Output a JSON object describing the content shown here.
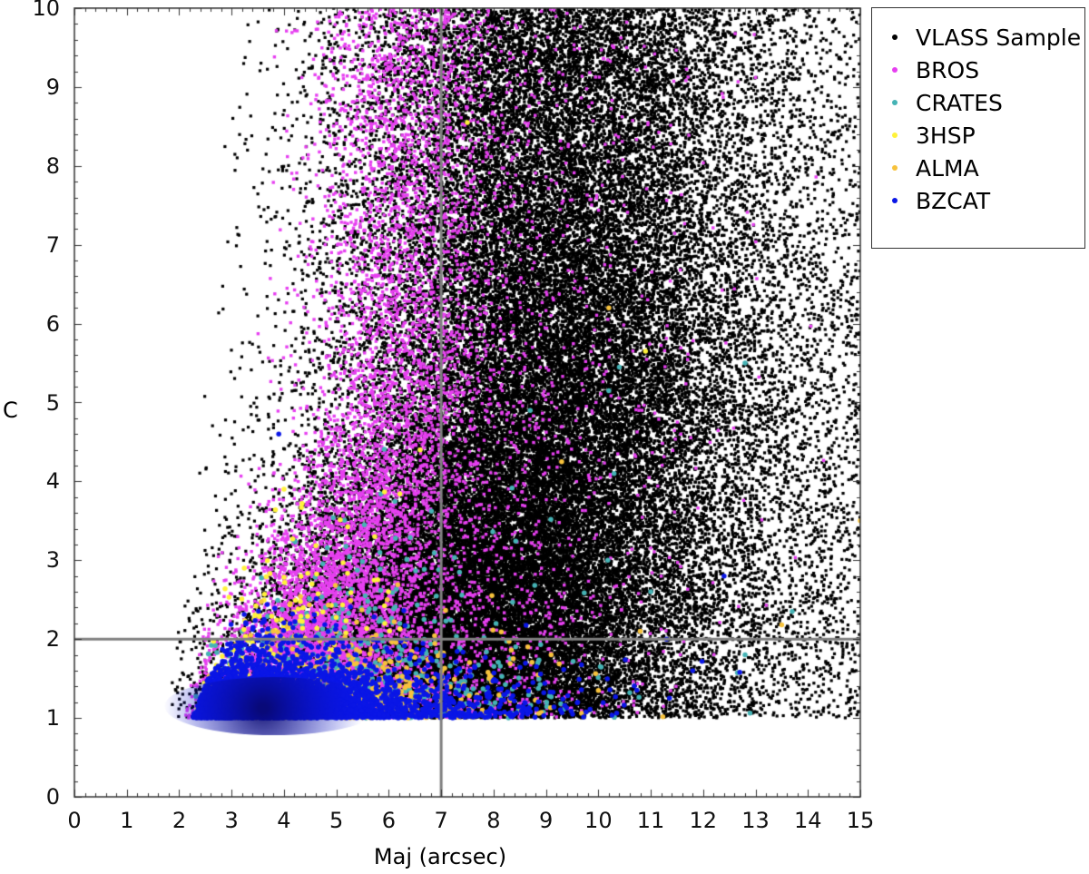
{
  "chart_data": {
    "type": "scatter",
    "title": "",
    "xlabel": "Maj (arcsec)",
    "ylabel": "C",
    "xlim": [
      0,
      15
    ],
    "ylim": [
      0,
      10
    ],
    "xticks": [
      "0",
      "1",
      "2",
      "3",
      "4",
      "5",
      "6",
      "7",
      "8",
      "9",
      "10",
      "11",
      "12",
      "13",
      "14",
      "15"
    ],
    "yticks": [
      "0",
      "1",
      "2",
      "3",
      "4",
      "5",
      "6",
      "7",
      "8",
      "9",
      "10"
    ],
    "x_minor_step": 0.2,
    "y_minor_step": 0.2,
    "grid": false,
    "legend_position": "outside upper right",
    "reference_lines": [
      {
        "orientation": "vertical",
        "x": 7,
        "color": "#808080"
      },
      {
        "orientation": "horizontal",
        "y": 2,
        "color": "#808080"
      }
    ],
    "series": [
      {
        "name": "VLASS Sample",
        "color": "#000000",
        "marker": "square",
        "size": 3.2,
        "description": "Very dense cloud; lower bound C=1; left edge from Maj~1.8 at C=1 to ~3.8 at C=10; densest around Maj 5-9; sparse tail to Maj 15",
        "generator": {
          "count": 60000,
          "x_center": 7.6,
          "x_spread": 1.9,
          "x_tail": 2.4,
          "c_min": 1.0,
          "c_max": 10.0,
          "c_scale": 3.2,
          "left_edge_at_c1": 1.75,
          "left_edge_slope": 0.21,
          "seed": 11
        }
      },
      {
        "name": "BROS",
        "color": "#e63ff0",
        "marker": "square",
        "size": 3.4,
        "description": "Concentrated at Maj 3.5-6, C 1.5-4; scattered up to C=10 and Maj up to 15",
        "generator": {
          "count": 9000,
          "x_center": 5.0,
          "x_spread": 0.9,
          "x_tail": 1.6,
          "c_min": 1.0,
          "c_max": 10.0,
          "c_scale": 1.4,
          "left_edge_at_c1": 2.1,
          "left_edge_slope": 0.3,
          "seed": 23
        }
      },
      {
        "name": "CRATES",
        "color": "#45b3b5",
        "marker": "circle",
        "size": 5.5,
        "description": "Mostly C 1-3, Maj 3-9",
        "generator": {
          "count": 700,
          "x_center": 5.4,
          "x_spread": 1.3,
          "x_tail": 1.5,
          "c_min": 1.0,
          "c_max": 5.0,
          "c_scale": 0.55,
          "left_edge_at_c1": 2.2,
          "left_edge_slope": 0.4,
          "seed": 37
        },
        "outliers": [
          [
            10.4,
            5.45
          ],
          [
            10.3,
            4.1
          ],
          [
            10.6,
            1.32
          ],
          [
            12.8,
            1.8
          ],
          [
            13.7,
            2.35
          ],
          [
            11.0,
            2.6
          ],
          [
            8.7,
            4.9
          ],
          [
            10.2,
            5.15
          ],
          [
            12.8,
            5.5
          ]
        ]
      },
      {
        "name": "3HSP",
        "color": "#fff23a",
        "marker": "circle",
        "size": 5.5,
        "description": "Mostly C 1.2-3.9, Maj 3-6",
        "generator": {
          "count": 260,
          "x_center": 4.3,
          "x_spread": 0.8,
          "x_tail": 0.6,
          "c_min": 1.0,
          "c_max": 4.0,
          "c_scale": 0.75,
          "left_edge_at_c1": 2.3,
          "left_edge_slope": 0.35,
          "seed": 41
        },
        "outliers": [
          [
            7.5,
            8.55
          ],
          [
            10.9,
            5.65
          ],
          [
            4.0,
            3.9
          ],
          [
            6.6,
            4.4
          ]
        ]
      },
      {
        "name": "ALMA",
        "color": "#f7c23c",
        "marker": "circle",
        "size": 5.5,
        "description": "Mostly C 1-2, Maj 3-8",
        "generator": {
          "count": 600,
          "x_center": 5.2,
          "x_spread": 1.2,
          "x_tail": 1.2,
          "c_min": 1.0,
          "c_max": 3.0,
          "c_scale": 0.35,
          "left_edge_at_c1": 2.3,
          "left_edge_slope": 0.5,
          "seed": 53
        },
        "outliers": [
          [
            10.2,
            6.2
          ],
          [
            13.5,
            2.18
          ],
          [
            15.0,
            3.5
          ],
          [
            10.0,
            1.35
          ],
          [
            9.3,
            4.25
          ],
          [
            10.8,
            2.1
          ]
        ]
      },
      {
        "name": "BZCAT",
        "color": "#0a16e6",
        "marker": "circle",
        "size": 5.5,
        "description": "Very dense core at C 1-1.6, Maj 2.3-6; spread to Maj ~12",
        "generator": {
          "count": 5000,
          "x_center": 4.2,
          "x_spread": 1.0,
          "x_tail": 1.4,
          "c_min": 1.0,
          "c_max": 3.5,
          "c_scale": 0.22,
          "left_edge_at_c1": 2.25,
          "left_edge_slope": 0.6,
          "seed": 67
        },
        "outliers": [
          [
            12.4,
            2.8
          ],
          [
            12.7,
            1.58
          ],
          [
            11.8,
            1.6
          ],
          [
            11.3,
            2.0
          ],
          [
            3.9,
            4.6
          ]
        ]
      }
    ]
  },
  "axes": {
    "x_label": "Maj (arcsec)",
    "y_label": "C"
  },
  "legend": {
    "items": [
      {
        "label": "VLASS Sample",
        "color": "#000000"
      },
      {
        "label": "BROS",
        "color": "#e63ff0"
      },
      {
        "label": "CRATES",
        "color": "#45b3b5"
      },
      {
        "label": "3HSP",
        "color": "#fff23a"
      },
      {
        "label": "ALMA",
        "color": "#f7c23c"
      },
      {
        "label": "BZCAT",
        "color": "#0a16e6"
      }
    ]
  }
}
